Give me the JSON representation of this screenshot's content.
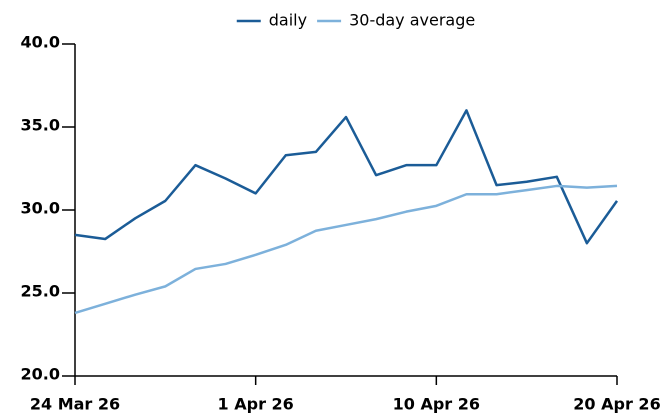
{
  "chart_data": {
    "type": "line",
    "categories": [
      "24 Mar 26",
      null,
      null,
      null,
      null,
      null,
      "1 Apr 26",
      null,
      null,
      null,
      null,
      null,
      "10 Apr 26",
      null,
      null,
      null,
      null,
      null,
      "20 Apr 26"
    ],
    "series": [
      {
        "name": "daily",
        "color": "#1b5c97",
        "values": [
          28.5,
          28.25,
          29.5,
          30.55,
          32.7,
          31.9,
          31.0,
          33.3,
          33.5,
          35.6,
          32.1,
          32.7,
          32.7,
          36.0,
          31.5,
          31.7,
          32.0,
          28.0,
          30.55
        ]
      },
      {
        "name": "30-day average",
        "color": "#7db1db",
        "values": [
          23.8,
          24.35,
          24.9,
          25.4,
          26.45,
          26.75,
          27.3,
          27.9,
          28.75,
          29.1,
          29.45,
          29.9,
          30.25,
          30.95,
          30.95,
          31.2,
          31.45,
          31.35,
          31.45
        ]
      }
    ],
    "ylim": [
      20,
      40
    ],
    "yticks": [
      {
        "value": 20,
        "label": "20.0"
      },
      {
        "value": 25,
        "label": "25.0"
      },
      {
        "value": 30,
        "label": "30.0"
      },
      {
        "value": 35,
        "label": "35.0"
      },
      {
        "value": 40,
        "label": "40.0"
      }
    ],
    "grid": false,
    "legend": "top"
  }
}
